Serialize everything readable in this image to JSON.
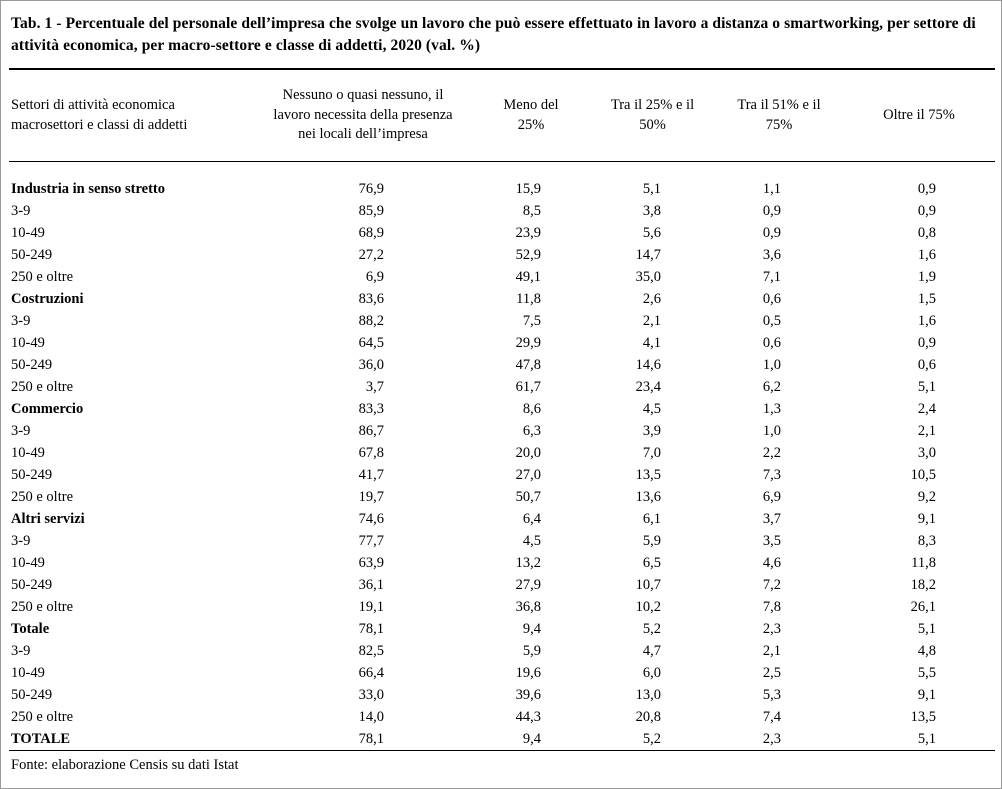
{
  "title": "Tab. 1 -  Percentuale del personale dell’impresa che svolge un lavoro che può essere effettuato in lavoro a distanza o smartworking, per settore di attività economica, per macro-settore e classe di addetti, 2020 (val. %)",
  "footer": "Fonte: elaborazione Censis su dati Istat",
  "chart_data": {
    "type": "table",
    "title": "Tab. 1 - Percentuale del personale dell’impresa che svolge un lavoro che può essere effettuato in lavoro a distanza o smartworking, per settore di attività economica, per macro-settore e classe di addetti, 2020 (val. %)",
    "columns": [
      "Nessuno o quasi nessuno, il lavoro necessita della presenza nei locali dell’impresa",
      "Meno del 25%",
      "Tra il 25% e il 50%",
      "Tra il 51% e il 75%",
      "Oltre il 75%"
    ],
    "note": "Values are percentages (val. %), comma as decimal separator"
  },
  "table": {
    "col_headers": [
      "Settori di attività  economica macrosettori e classi di addetti",
      "Nessuno o quasi nessuno, il lavoro necessita della presenza nei locali dell’impresa",
      "Meno del 25%",
      "Tra il 25% e il 50%",
      "Tra il 51% e il 75%",
      "Oltre il 75%"
    ],
    "rows": [
      {
        "label": "Industria in senso stretto",
        "bold": true,
        "values": [
          "76,9",
          "15,9",
          "5,1",
          "1,1",
          "0,9"
        ]
      },
      {
        "label": "3-9",
        "bold": false,
        "values": [
          "85,9",
          "8,5",
          "3,8",
          "0,9",
          "0,9"
        ]
      },
      {
        "label": "10-49",
        "bold": false,
        "values": [
          "68,9",
          "23,9",
          "5,6",
          "0,9",
          "0,8"
        ]
      },
      {
        "label": "50-249",
        "bold": false,
        "values": [
          "27,2",
          "52,9",
          "14,7",
          "3,6",
          "1,6"
        ]
      },
      {
        "label": "250 e oltre",
        "bold": false,
        "values": [
          "6,9",
          "49,1",
          "35,0",
          "7,1",
          "1,9"
        ]
      },
      {
        "label": "Costruzioni",
        "bold": true,
        "values": [
          "83,6",
          "11,8",
          "2,6",
          "0,6",
          "1,5"
        ]
      },
      {
        "label": "3-9",
        "bold": false,
        "values": [
          "88,2",
          "7,5",
          "2,1",
          "0,5",
          "1,6"
        ]
      },
      {
        "label": "10-49",
        "bold": false,
        "values": [
          "64,5",
          "29,9",
          "4,1",
          "0,6",
          "0,9"
        ]
      },
      {
        "label": "50-249",
        "bold": false,
        "values": [
          "36,0",
          "47,8",
          "14,6",
          "1,0",
          "0,6"
        ]
      },
      {
        "label": "250 e oltre",
        "bold": false,
        "values": [
          "3,7",
          "61,7",
          "23,4",
          "6,2",
          "5,1"
        ]
      },
      {
        "label": "Commercio",
        "bold": true,
        "values": [
          "83,3",
          "8,6",
          "4,5",
          "1,3",
          "2,4"
        ]
      },
      {
        "label": "3-9",
        "bold": false,
        "values": [
          "86,7",
          "6,3",
          "3,9",
          "1,0",
          "2,1"
        ]
      },
      {
        "label": "10-49",
        "bold": false,
        "values": [
          "67,8",
          "20,0",
          "7,0",
          "2,2",
          "3,0"
        ]
      },
      {
        "label": "50-249",
        "bold": false,
        "values": [
          "41,7",
          "27,0",
          "13,5",
          "7,3",
          "10,5"
        ]
      },
      {
        "label": "250 e oltre",
        "bold": false,
        "values": [
          "19,7",
          "50,7",
          "13,6",
          "6,9",
          "9,2"
        ]
      },
      {
        "label": "Altri servizi",
        "bold": true,
        "values": [
          "74,6",
          "6,4",
          "6,1",
          "3,7",
          "9,1"
        ]
      },
      {
        "label": "3-9",
        "bold": false,
        "values": [
          "77,7",
          "4,5",
          "5,9",
          "3,5",
          "8,3"
        ]
      },
      {
        "label": "10-49",
        "bold": false,
        "values": [
          "63,9",
          "13,2",
          "6,5",
          "4,6",
          "11,8"
        ]
      },
      {
        "label": "50-249",
        "bold": false,
        "values": [
          "36,1",
          "27,9",
          "10,7",
          "7,2",
          "18,2"
        ]
      },
      {
        "label": "250 e oltre",
        "bold": false,
        "values": [
          "19,1",
          "36,8",
          "10,2",
          "7,8",
          "26,1"
        ]
      },
      {
        "label": "Totale",
        "bold": true,
        "values": [
          "78,1",
          "9,4",
          "5,2",
          "2,3",
          "5,1"
        ]
      },
      {
        "label": "3-9",
        "bold": false,
        "values": [
          "82,5",
          "5,9",
          "4,7",
          "2,1",
          "4,8"
        ]
      },
      {
        "label": "10-49",
        "bold": false,
        "values": [
          "66,4",
          "19,6",
          "6,0",
          "2,5",
          "5,5"
        ]
      },
      {
        "label": "50-249",
        "bold": false,
        "values": [
          "33,0",
          "39,6",
          "13,0",
          "5,3",
          "9,1"
        ]
      },
      {
        "label": "250 e oltre",
        "bold": false,
        "values": [
          "14,0",
          "44,3",
          "20,8",
          "7,4",
          "13,5"
        ]
      },
      {
        "label": "TOTALE",
        "bold": true,
        "values": [
          "78,1",
          "9,4",
          "5,2",
          "2,3",
          "5,1"
        ]
      }
    ]
  }
}
